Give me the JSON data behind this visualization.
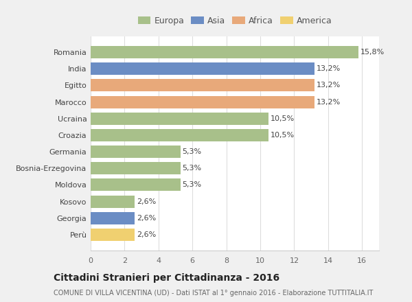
{
  "categories": [
    "Romania",
    "India",
    "Egitto",
    "Marocco",
    "Ucraina",
    "Croazia",
    "Germania",
    "Bosnia-Erzegovina",
    "Moldova",
    "Kosovo",
    "Georgia",
    "Perù"
  ],
  "values": [
    15.8,
    13.2,
    13.2,
    13.2,
    10.5,
    10.5,
    5.3,
    5.3,
    5.3,
    2.6,
    2.6,
    2.6
  ],
  "labels": [
    "15,8%",
    "13,2%",
    "13,2%",
    "13,2%",
    "10,5%",
    "10,5%",
    "5,3%",
    "5,3%",
    "5,3%",
    "2,6%",
    "2,6%",
    "2,6%"
  ],
  "colors": [
    "#a8c08a",
    "#6b8dc4",
    "#e8a97a",
    "#e8a97a",
    "#a8c08a",
    "#a8c08a",
    "#a8c08a",
    "#a8c08a",
    "#a8c08a",
    "#a8c08a",
    "#6b8dc4",
    "#f0d070"
  ],
  "legend_labels": [
    "Europa",
    "Asia",
    "Africa",
    "America"
  ],
  "legend_colors": [
    "#a8c08a",
    "#6b8dc4",
    "#e8a97a",
    "#f0d070"
  ],
  "title": "Cittadini Stranieri per Cittadinanza - 2016",
  "subtitle": "COMUNE DI VILLA VICENTINA (UD) - Dati ISTAT al 1° gennaio 2016 - Elaborazione TUTTITALIA.IT",
  "xlim": [
    0,
    17
  ],
  "xticks": [
    0,
    2,
    4,
    6,
    8,
    10,
    12,
    14,
    16
  ],
  "figure_bg": "#f0f0f0",
  "plot_bg": "#ffffff",
  "grid_color": "#dddddd",
  "bar_height": 0.75,
  "label_fontsize": 8,
  "tick_fontsize": 8,
  "legend_fontsize": 9
}
